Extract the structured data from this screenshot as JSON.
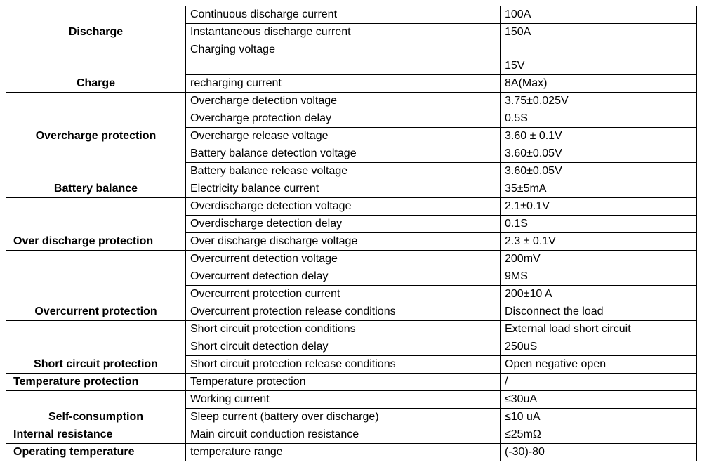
{
  "sections": {
    "discharge": {
      "label": "Discharge",
      "rows": [
        {
          "param": "Continuous discharge current",
          "value": "100A"
        },
        {
          "param": "Instantaneous discharge current",
          "value": "150A"
        }
      ]
    },
    "charge": {
      "label": "Charge",
      "rows": [
        {
          "param": "Charging voltage",
          "value": "15V"
        },
        {
          "param": "recharging current",
          "value": "8A(Max)"
        }
      ]
    },
    "overcharge": {
      "label": "Overcharge protection",
      "rows": [
        {
          "param": "Overcharge detection voltage",
          "value": "3.75±0.025V"
        },
        {
          "param": "Overcharge protection delay",
          "value": "0.5S"
        },
        {
          "param": "Overcharge release voltage",
          "value": "3.60 ± 0.1V"
        }
      ]
    },
    "balance": {
      "label": "Battery balance",
      "rows": [
        {
          "param": "Battery balance detection voltage",
          "value": "3.60±0.05V"
        },
        {
          "param": "Battery balance release voltage",
          "value": "3.60±0.05V"
        },
        {
          "param": "Electricity balance current",
          "value": "35±5mA"
        }
      ]
    },
    "overdischarge": {
      "label": "Over discharge protection",
      "rows": [
        {
          "param": "Overdischarge detection voltage",
          "value": "2.1±0.1V"
        },
        {
          "param": "Overdischarge detection delay",
          "value": "0.1S"
        },
        {
          "param": "Over discharge discharge voltage",
          "value": "2.3 ± 0.1V"
        }
      ]
    },
    "overcurrent": {
      "label": "Overcurrent protection",
      "rows": [
        {
          "param": "Overcurrent detection voltage",
          "value": "200mV"
        },
        {
          "param": "Overcurrent detection delay",
          "value": "9MS"
        },
        {
          "param": "Overcurrent protection current",
          "value": "200±10 A"
        },
        {
          "param": "Overcurrent protection release conditions",
          "value": "Disconnect the load"
        }
      ]
    },
    "shortcircuit": {
      "label": "Short circuit protection",
      "rows": [
        {
          "param": "Short circuit protection conditions",
          "value": "External load short circuit"
        },
        {
          "param": "Short circuit detection delay",
          "value": "250uS"
        },
        {
          "param": "Short circuit protection release conditions",
          "value": "Open negative open"
        }
      ]
    },
    "temperature": {
      "label": "Temperature protection",
      "rows": [
        {
          "param": "Temperature protection",
          "value": "/"
        }
      ]
    },
    "selfconsumption": {
      "label": "Self-consumption",
      "rows": [
        {
          "param": "Working current",
          "value": "≤30uA"
        },
        {
          "param": "Sleep current (battery over discharge)",
          "value": "≤10 uA"
        }
      ]
    },
    "internalresistance": {
      "label": "Internal resistance",
      "rows": [
        {
          "param": "Main circuit conduction resistance",
          "value": "≤25mΩ"
        }
      ]
    },
    "operatingtemp": {
      "label": "Operating temperature",
      "rows": [
        {
          "param": "temperature range",
          "value": "(-30)-80"
        }
      ]
    }
  }
}
